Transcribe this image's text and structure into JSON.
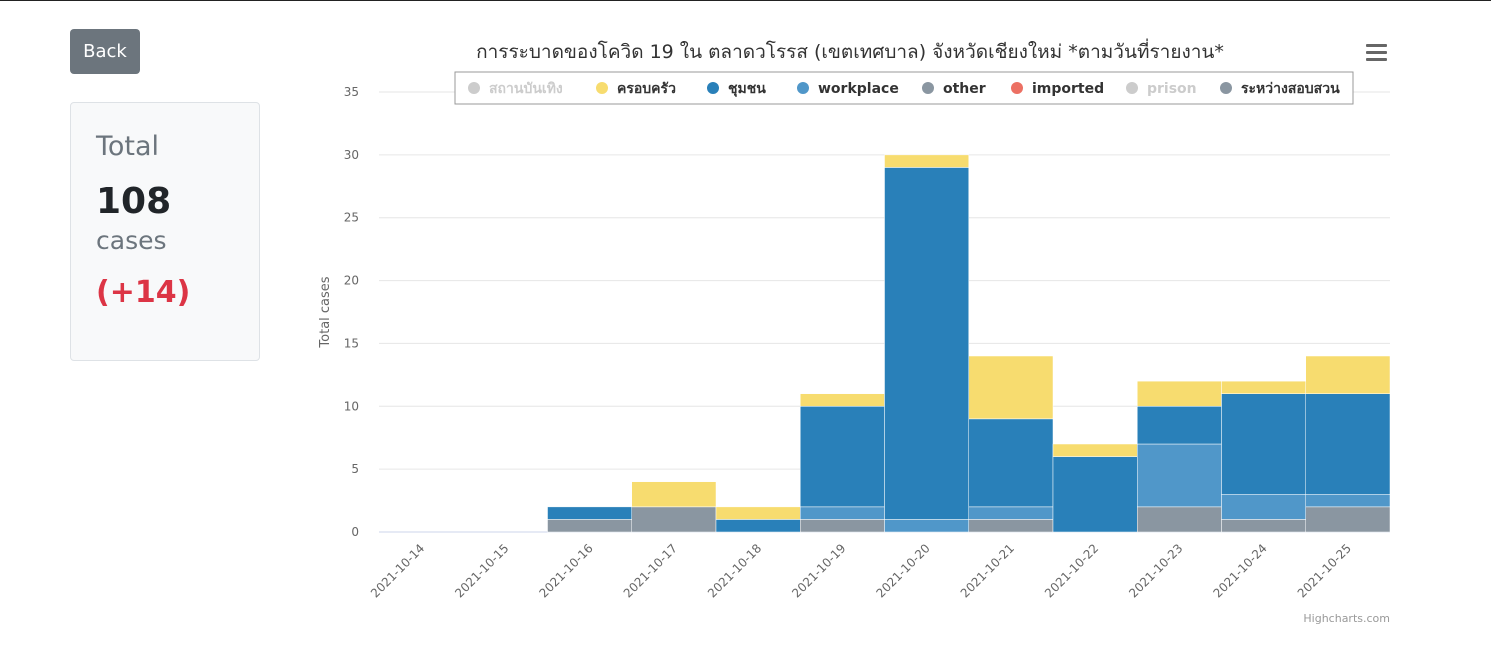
{
  "back_button": {
    "label": "Back"
  },
  "summary": {
    "label": "Total",
    "value": "108",
    "unit": "cases",
    "delta": "(+14)"
  },
  "chart_credit": "Highcharts.com",
  "chart_data": {
    "type": "bar",
    "stacked": true,
    "title": "การระบาดของโควิด 19 ใน ตลาดวโรรส (เขตเทศบาล) จังหวัดเชียงใหม่ *ตามวันที่รายงาน*",
    "xlabel": "",
    "ylabel": "Total cases",
    "ylim": [
      0,
      35
    ],
    "yticks": [
      0,
      5,
      10,
      15,
      20,
      25,
      30,
      35
    ],
    "grid": true,
    "legend_position": "top-center",
    "categories": [
      "2021-10-14",
      "2021-10-15",
      "2021-10-16",
      "2021-10-17",
      "2021-10-18",
      "2021-10-19",
      "2021-10-20",
      "2021-10-21",
      "2021-10-22",
      "2021-10-23",
      "2021-10-24",
      "2021-10-25"
    ],
    "series": [
      {
        "name": "สถานบันเทิง",
        "color": "#cccccc",
        "visible": false,
        "values": [
          0,
          0,
          0,
          0,
          0,
          0,
          0,
          0,
          0,
          0,
          0,
          0
        ]
      },
      {
        "name": "ระหว่างสอบสวน",
        "color": "#8a96a1",
        "visible": true,
        "values": [
          0,
          0,
          1,
          2,
          0,
          1,
          0,
          1,
          0,
          2,
          1,
          2
        ]
      },
      {
        "name": "workplace",
        "color": "#5097c9",
        "visible": true,
        "values": [
          0,
          0,
          0,
          0,
          0,
          1,
          1,
          1,
          0,
          5,
          2,
          1
        ]
      },
      {
        "name": "ชุมชน",
        "color": "#2980b9",
        "visible": true,
        "values": [
          0,
          0,
          1,
          0,
          1,
          8,
          28,
          7,
          6,
          3,
          8,
          8
        ]
      },
      {
        "name": "ครอบครัว",
        "color": "#f7dc6f",
        "visible": true,
        "values": [
          0,
          0,
          0,
          2,
          1,
          1,
          1,
          5,
          1,
          2,
          1,
          3
        ]
      },
      {
        "name": "other",
        "color": "#8a96a1",
        "visible": true,
        "values": [
          0,
          0,
          0,
          0,
          0,
          0,
          0,
          0,
          0,
          0,
          0,
          0
        ]
      },
      {
        "name": "imported",
        "color": "#ec7063",
        "visible": true,
        "values": [
          0,
          0,
          0,
          0,
          0,
          0,
          0,
          0,
          0,
          0,
          0,
          0
        ]
      },
      {
        "name": "prison",
        "color": "#cccccc",
        "visible": false,
        "values": [
          0,
          0,
          0,
          0,
          0,
          0,
          0,
          0,
          0,
          0,
          0,
          0
        ]
      }
    ],
    "legend_order": [
      "สถานบันเทิง",
      "ครอบครัว",
      "ชุมชน",
      "workplace",
      "other",
      "imported",
      "prison",
      "ระหว่างสอบสวน"
    ]
  }
}
